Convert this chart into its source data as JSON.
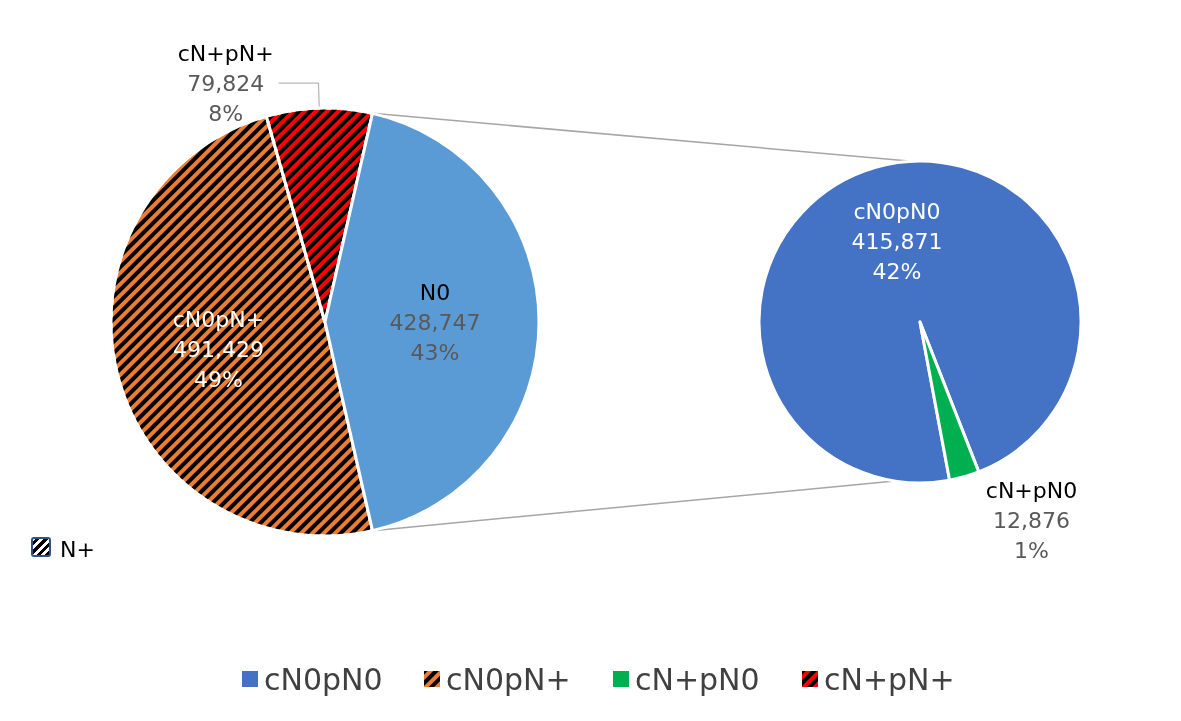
{
  "chart_data": [
    {
      "type": "pie",
      "categories": [
        "cN0pN+",
        "cN+pN+",
        "N0"
      ],
      "values": [
        491429,
        79824,
        428747
      ],
      "colors": [
        "#ed7d31",
        "#ff0000",
        "#5b9bd5"
      ],
      "value_labels": [
        "491,429\n49%",
        "79,824\n8%",
        "428,747\n43%"
      ],
      "legend": "bottom",
      "annotations": [
        "N+"
      ]
    },
    {
      "type": "pie",
      "categories": [
        "cN0pN0",
        "cN+pN0"
      ],
      "values": [
        415871,
        12876
      ],
      "colors": [
        "#4472c4",
        "#00b050"
      ],
      "value_labels": [
        "415,871\n42%",
        "12,876\n1%"
      ],
      "legend": "bottom"
    }
  ]
}
